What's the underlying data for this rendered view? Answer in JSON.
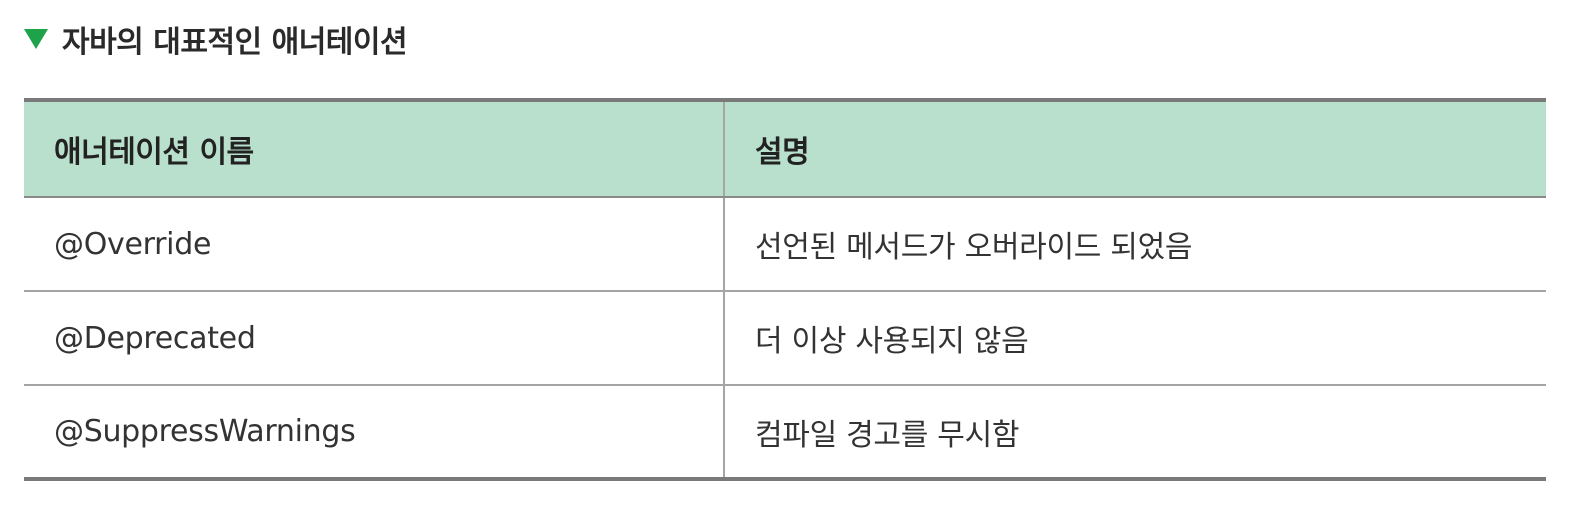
{
  "caption": {
    "icon": "triangle-down-icon",
    "icon_color": "#1fa34a",
    "text": "자바의 대표적인 애너테이션"
  },
  "table": {
    "header_bg": "#b9e0cd",
    "columns": [
      "애너테이션 이름",
      "설명"
    ],
    "rows": [
      [
        "@Override",
        "선언된 메서드가 오버라이드 되었음"
      ],
      [
        "@Deprecated",
        "더 이상 사용되지 않음"
      ],
      [
        "@SuppressWarnings",
        "컴파일 경고를 무시함"
      ]
    ]
  }
}
